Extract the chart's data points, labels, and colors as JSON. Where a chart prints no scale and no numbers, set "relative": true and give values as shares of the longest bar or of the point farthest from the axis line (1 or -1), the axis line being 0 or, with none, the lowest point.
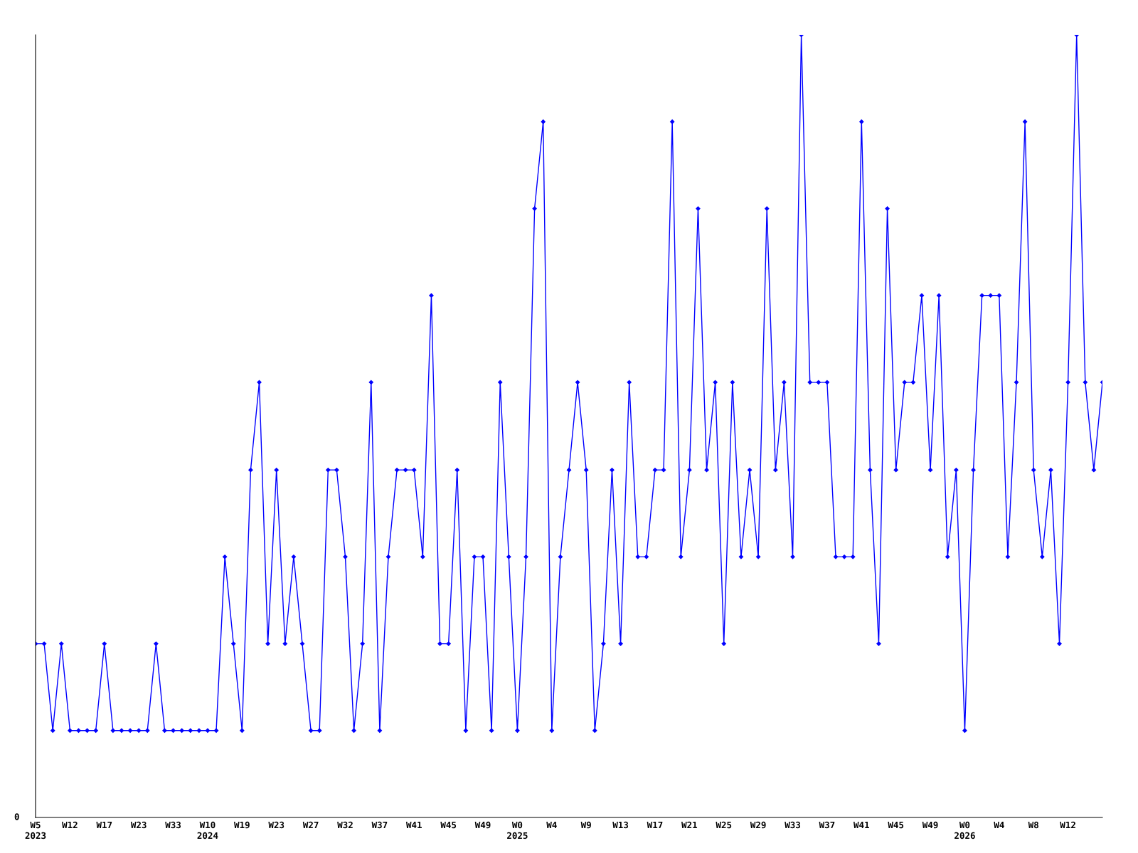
{
  "chart_data": {
    "type": "line",
    "relative": true,
    "marker": "diamond",
    "line_style": "solid",
    "annotations": [
      "0"
    ],
    "categories": [
      "W5\n2023",
      null,
      null,
      null,
      "W12",
      null,
      null,
      null,
      "W17",
      null,
      null,
      null,
      "W23",
      null,
      null,
      null,
      "W33",
      null,
      null,
      null,
      "W10\n2024",
      null,
      null,
      null,
      "W19",
      null,
      null,
      null,
      "W23",
      null,
      null,
      null,
      "W27",
      null,
      null,
      null,
      "W32",
      null,
      null,
      null,
      "W37",
      null,
      null,
      null,
      "W41",
      null,
      null,
      null,
      "W45",
      null,
      null,
      null,
      "W49",
      null,
      null,
      null,
      "W0\n2025",
      null,
      null,
      null,
      "W4",
      null,
      null,
      null,
      "W9",
      null,
      null,
      null,
      "W13",
      null,
      null,
      null,
      "W17",
      null,
      null,
      null,
      "W21",
      null,
      null,
      null,
      "W25",
      null,
      null,
      null,
      "W29",
      null,
      null,
      null,
      "W33",
      null,
      null,
      null,
      "W37",
      null,
      null,
      null,
      "W41",
      null,
      null,
      null,
      "W45",
      null,
      null,
      null,
      "W49",
      null,
      null,
      null,
      "W0\n2026",
      null,
      null,
      null,
      "W4",
      null,
      null,
      null,
      "W8",
      null,
      null,
      null,
      "W12",
      null,
      null,
      null,
      null
    ],
    "series": [
      {
        "color": "#0000ff",
        "values": [
          0.222,
          0.222,
          0.111,
          0.222,
          0.111,
          0.111,
          0.111,
          0.111,
          0.222,
          0.111,
          0.111,
          0.111,
          0.111,
          0.111,
          0.222,
          0.111,
          0.111,
          0.111,
          0.111,
          0.111,
          0.111,
          0.111,
          0.333,
          0.222,
          0.111,
          0.444,
          0.556,
          0.222,
          0.444,
          0.222,
          0.333,
          0.222,
          0.111,
          0.111,
          0.444,
          0.444,
          0.333,
          0.111,
          0.222,
          0.556,
          0.111,
          0.333,
          0.444,
          0.444,
          0.444,
          0.333,
          0.667,
          0.222,
          0.222,
          0.444,
          0.111,
          0.333,
          0.333,
          0.111,
          0.556,
          0.333,
          0.111,
          0.333,
          0.778,
          0.889,
          0.111,
          0.333,
          0.444,
          0.556,
          0.444,
          0.111,
          0.222,
          0.444,
          0.222,
          0.556,
          0.333,
          0.333,
          0.444,
          0.444,
          0.889,
          0.333,
          0.444,
          0.778,
          0.444,
          0.556,
          0.222,
          0.556,
          0.333,
          0.444,
          0.333,
          0.778,
          0.444,
          0.556,
          0.333,
          1,
          0.556,
          0.556,
          0.556,
          0.333,
          0.333,
          0.333,
          0.889,
          0.444,
          0.222,
          0.778,
          0.444,
          0.556,
          0.556,
          0.667,
          0.444,
          0.667,
          0.333,
          0.444,
          0.111,
          0.444,
          0.667,
          0.667,
          0.667,
          0.333,
          0.556,
          0.889,
          0.444,
          0.333,
          0.444,
          0.222,
          0.556,
          1,
          0.556,
          0.444,
          0.556
        ]
      }
    ]
  }
}
